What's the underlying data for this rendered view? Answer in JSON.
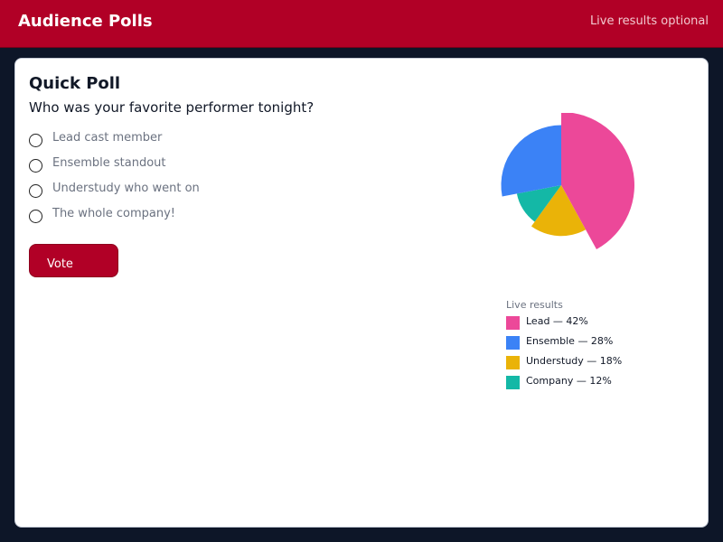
{
  "header": {
    "title": "Audience Polls",
    "subtitle": "Live results optional"
  },
  "poll": {
    "title": "Quick Poll",
    "question": "Who was your favorite performer tonight?",
    "options": [
      {
        "label": "Lead cast member"
      },
      {
        "label": "Ensemble standout"
      },
      {
        "label": "Understudy who went on"
      },
      {
        "label": "The whole company!"
      }
    ],
    "vote_label": "Vote"
  },
  "results": {
    "legend_title": "Live results",
    "legend": [
      {
        "label": "Lead — 42%",
        "color": "#ec4899"
      },
      {
        "label": "Ensemble — 28%",
        "color": "#3b82f6"
      },
      {
        "label": "Understudy — 18%",
        "color": "#eab308"
      },
      {
        "label": "Company — 12%",
        "color": "#14b8a6"
      }
    ]
  },
  "chart_data": {
    "type": "pie",
    "categories": [
      "Lead",
      "Ensemble",
      "Understudy",
      "Company"
    ],
    "values": [
      42,
      28,
      18,
      12
    ],
    "colors": [
      "#ec4899",
      "#3b82f6",
      "#eab308",
      "#14b8a6"
    ]
  }
}
